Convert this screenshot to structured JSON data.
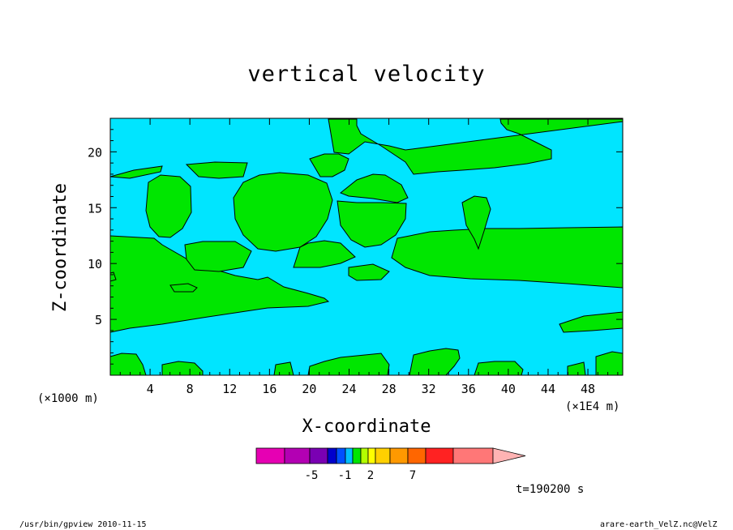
{
  "chart_data": {
    "type": "heatmap",
    "title": "vertical velocity",
    "xlabel": "X-coordinate",
    "ylabel": "Z-coordinate",
    "x_unit": "(×1000 m)",
    "x_scale": "(×1E4 m)",
    "xlim": [
      0,
      51.5
    ],
    "ylim": [
      0,
      23
    ],
    "x_ticks": [
      4,
      8,
      12,
      16,
      20,
      24,
      28,
      32,
      36,
      40,
      44,
      48
    ],
    "y_ticks": [
      5,
      10,
      15,
      20
    ],
    "background_color": "#00e5ff",
    "region_color": "#00e600",
    "colorbar": {
      "colors": [
        "#e600b3",
        "#b300b3",
        "#7a00b3",
        "#0000cc",
        "#0050ff",
        "#00bfff",
        "#00e600",
        "#b3ff00",
        "#ffff00",
        "#ffd000",
        "#ff9900",
        "#ff6600",
        "#ff2222",
        "#ff7777",
        "#ffb3b3"
      ],
      "labels": [
        "-5",
        "-1",
        "2",
        "7"
      ],
      "extend": "max"
    },
    "time": "t=190200 s"
  },
  "footer": {
    "left": "/usr/bin/gpview  2010-11-15",
    "right": "arare-earth_VelZ.nc@VelZ"
  }
}
